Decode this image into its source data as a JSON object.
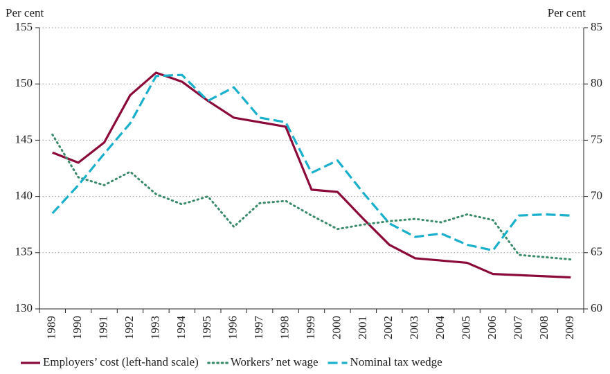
{
  "chart_data": {
    "type": "line",
    "y_label": "Per cent",
    "y2_label": "Per cent",
    "categories": [
      "1989",
      "1990",
      "1991",
      "1992",
      "1993",
      "1994",
      "1995",
      "1996",
      "1997",
      "1998",
      "1999",
      "2000",
      "2001",
      "2002",
      "2003",
      "2004",
      "2005",
      "2006",
      "2007",
      "2008",
      "2009"
    ],
    "series": [
      {
        "name": "Employers’ cost (left-hand scale)",
        "color": "#8b0a3a",
        "style": "solid",
        "values": [
          143.9,
          143.0,
          144.8,
          149.0,
          151.0,
          150.2,
          148.5,
          147.0,
          146.6,
          146.2,
          140.6,
          140.4,
          138.0,
          135.7,
          134.5,
          134.3,
          134.1,
          133.1,
          133.0,
          132.9,
          132.8
        ]
      },
      {
        "name": "Workers’ net wage",
        "color": "#3a8a6a",
        "style": "dotted",
        "axis": "y2",
        "values": [
          75.5,
          71.7,
          71.0,
          72.2,
          70.2,
          69.3,
          70.0,
          67.3,
          69.4,
          69.6,
          68.3,
          67.1,
          67.5,
          67.8,
          68.0,
          67.7,
          68.4,
          67.9,
          64.8,
          64.6,
          64.4
        ]
      },
      {
        "name": "Nominal tax wedge",
        "color": "#1ab0cc",
        "style": "dashed",
        "axis": "y2",
        "values": [
          68.5,
          71.0,
          73.8,
          76.5,
          80.7,
          80.8,
          78.5,
          79.7,
          77.0,
          76.6,
          72.1,
          73.2,
          70.3,
          67.6,
          66.4,
          66.7,
          65.7,
          65.2,
          68.3,
          68.4,
          68.3
        ]
      }
    ],
    "ylim": [
      130,
      155
    ],
    "yticks": [
      130,
      135,
      140,
      145,
      150,
      155
    ],
    "y2lim": [
      60,
      85
    ],
    "y2ticks": [
      60,
      65,
      70,
      75,
      80,
      85
    ],
    "grid": true,
    "legend": "bottom"
  }
}
